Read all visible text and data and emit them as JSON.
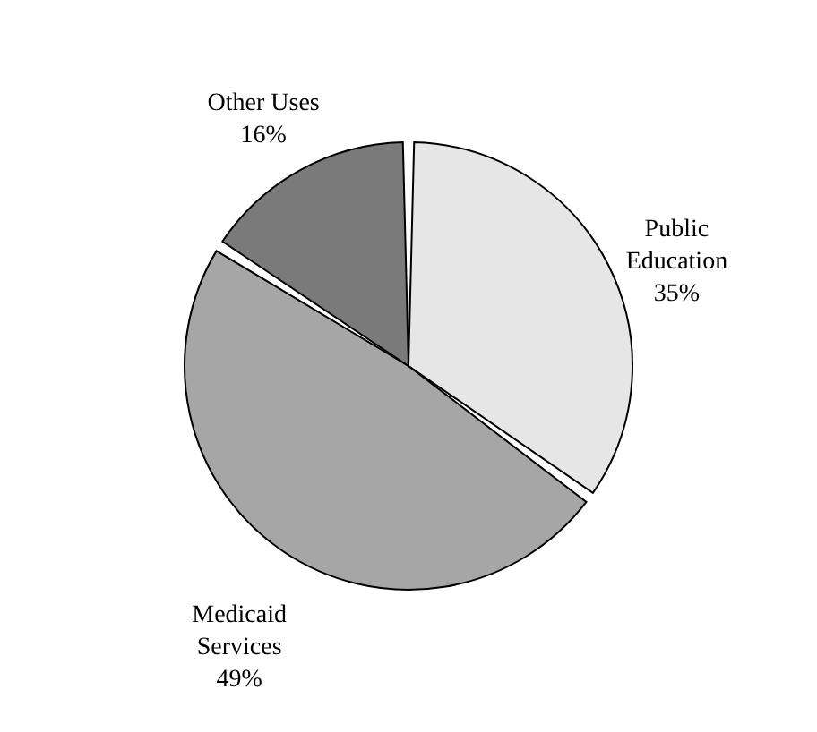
{
  "chart_data": {
    "type": "pie",
    "categories": [
      "Public Education",
      "Medicaid Services",
      "Other Uses"
    ],
    "values": [
      35,
      49,
      16
    ],
    "colors": [
      "#e6e6e6",
      "#a6a6a6",
      "#7a7a7a"
    ],
    "value_labels": [
      "35%",
      "49%",
      "16%"
    ]
  }
}
